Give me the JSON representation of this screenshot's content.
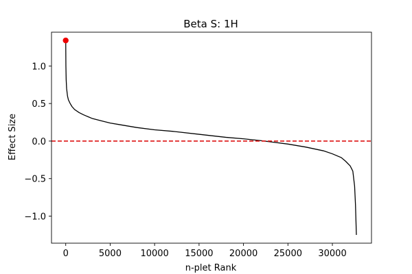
{
  "chart_data": {
    "type": "line",
    "title": "Beta S: 1H",
    "xlabel": "n-plet Rank",
    "ylabel": "Effect Size",
    "xlim": [
      -1600,
      34400
    ],
    "ylim": [
      -1.36,
      1.45
    ],
    "xticks": [
      0,
      5000,
      10000,
      15000,
      20000,
      25000,
      30000
    ],
    "xtick_labels": [
      "0",
      "5000",
      "10000",
      "15000",
      "20000",
      "25000",
      "30000"
    ],
    "yticks": [
      -1.0,
      -0.5,
      0.0,
      0.5,
      1.0
    ],
    "ytick_labels": [
      "−1.0",
      "−0.5",
      "0.0",
      "0.5",
      "1.0"
    ],
    "grid": false,
    "series": [
      {
        "style": "solid",
        "color": "#000000",
        "x": [
          0,
          20,
          50,
          100,
          200,
          300,
          500,
          700,
          1000,
          1500,
          2000,
          3000,
          4000,
          5000,
          6000,
          8000,
          10000,
          12000,
          15000,
          18000,
          20000,
          22000,
          23000,
          25000,
          27000,
          29000,
          30000,
          31000,
          31500,
          32000,
          32300,
          32500,
          32600,
          32650,
          32700
        ],
        "y": [
          1.34,
          1.0,
          0.82,
          0.7,
          0.6,
          0.55,
          0.5,
          0.46,
          0.42,
          0.38,
          0.35,
          0.3,
          0.27,
          0.24,
          0.22,
          0.18,
          0.15,
          0.13,
          0.09,
          0.05,
          0.03,
          0.005,
          -0.01,
          -0.04,
          -0.08,
          -0.13,
          -0.17,
          -0.22,
          -0.27,
          -0.33,
          -0.4,
          -0.6,
          -0.85,
          -1.05,
          -1.25
        ]
      }
    ],
    "reference_line": {
      "y": 0.0,
      "style": "dashed",
      "color": "#dd1111"
    },
    "highlight_point": {
      "x": 0,
      "y": 1.34,
      "color": "#ee0000"
    }
  }
}
